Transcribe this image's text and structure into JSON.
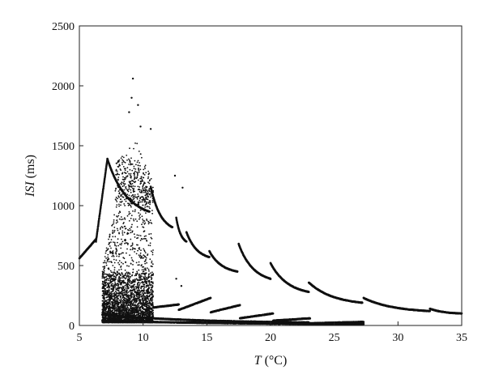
{
  "chart_data": {
    "type": "scatter",
    "title": "",
    "xlabel": {
      "symbol": "T",
      "unit": " (°C)"
    },
    "ylabel": {
      "symbol": "ISI",
      "unit": " (ms)"
    },
    "xlim": [
      5,
      35
    ],
    "ylim": [
      0,
      2500
    ],
    "xticks": [
      "5",
      "10",
      "15",
      "20",
      "25",
      "30",
      "35"
    ],
    "yticks": [
      "0",
      "500",
      "1000",
      "1500",
      "2000",
      "2500"
    ],
    "grid": false,
    "legend": "none",
    "marker_color": "#111111",
    "branches": [
      {
        "x_range": [
          5.0,
          6.3
        ],
        "y_range": [
          560,
          720
        ],
        "shape": "rising"
      },
      {
        "x_range": [
          6.3,
          7.2
        ],
        "y_range": [
          700,
          1390
        ],
        "shape": "rising"
      },
      {
        "x_range": [
          7.2,
          10.5
        ],
        "y_range": [
          1390,
          950
        ],
        "shape": "decay"
      },
      {
        "x_range": [
          10.6,
          12.3
        ],
        "y_range": [
          1160,
          820
        ],
        "shape": "decay"
      },
      {
        "x_range": [
          12.6,
          13.4
        ],
        "y_range": [
          900,
          700
        ],
        "shape": "decay"
      },
      {
        "x_range": [
          13.4,
          15.2
        ],
        "y_range": [
          780,
          570
        ],
        "shape": "decay"
      },
      {
        "x_range": [
          15.2,
          17.4
        ],
        "y_range": [
          620,
          450
        ],
        "shape": "decay"
      },
      {
        "x_range": [
          17.5,
          20.0
        ],
        "y_range": [
          680,
          390
        ],
        "shape": "decay"
      },
      {
        "x_range": [
          20.0,
          23.0
        ],
        "y_range": [
          520,
          280
        ],
        "shape": "decay"
      },
      {
        "x_range": [
          23.0,
          27.2
        ],
        "y_range": [
          360,
          190
        ],
        "shape": "decay"
      },
      {
        "x_range": [
          27.3,
          32.5
        ],
        "y_range": [
          230,
          120
        ],
        "shape": "decay"
      },
      {
        "x_range": [
          32.5,
          35.0
        ],
        "y_range": [
          140,
          100
        ],
        "shape": "decay"
      },
      {
        "x_range": [
          10.8,
          12.8
        ],
        "y_range": [
          150,
          175
        ],
        "shape": "rising"
      },
      {
        "x_range": [
          12.8,
          15.3
        ],
        "y_range": [
          130,
          230
        ],
        "shape": "rising"
      },
      {
        "x_range": [
          15.3,
          17.6
        ],
        "y_range": [
          110,
          170
        ],
        "shape": "rising"
      },
      {
        "x_range": [
          17.6,
          20.2
        ],
        "y_range": [
          60,
          100
        ],
        "shape": "rising"
      },
      {
        "x_range": [
          20.2,
          23.1
        ],
        "y_range": [
          40,
          60
        ],
        "shape": "rising"
      },
      {
        "x_range": [
          23.1,
          27.3
        ],
        "y_range": [
          18,
          30
        ],
        "shape": "rising"
      },
      {
        "x_range": [
          6.8,
          23.0
        ],
        "y_range": [
          90,
          25
        ],
        "shape": "decay"
      },
      {
        "x_range": [
          6.8,
          27.3
        ],
        "y_range": [
          40,
          12
        ],
        "shape": "decay"
      }
    ],
    "scatter_cloud": {
      "x_range": [
        6.8,
        10.8
      ],
      "y_range": [
        20,
        2060
      ],
      "dense_below": 400,
      "peak_x": 9.2,
      "peak_y": 2060
    },
    "notable_points": [
      {
        "x": 9.2,
        "y": 2060
      },
      {
        "x": 9.1,
        "y": 1900
      },
      {
        "x": 8.9,
        "y": 1780
      },
      {
        "x": 9.6,
        "y": 1840
      },
      {
        "x": 9.8,
        "y": 1660
      },
      {
        "x": 10.6,
        "y": 1640
      },
      {
        "x": 12.5,
        "y": 1250
      },
      {
        "x": 13.1,
        "y": 1150
      },
      {
        "x": 12.6,
        "y": 390
      },
      {
        "x": 13.0,
        "y": 330
      }
    ]
  }
}
